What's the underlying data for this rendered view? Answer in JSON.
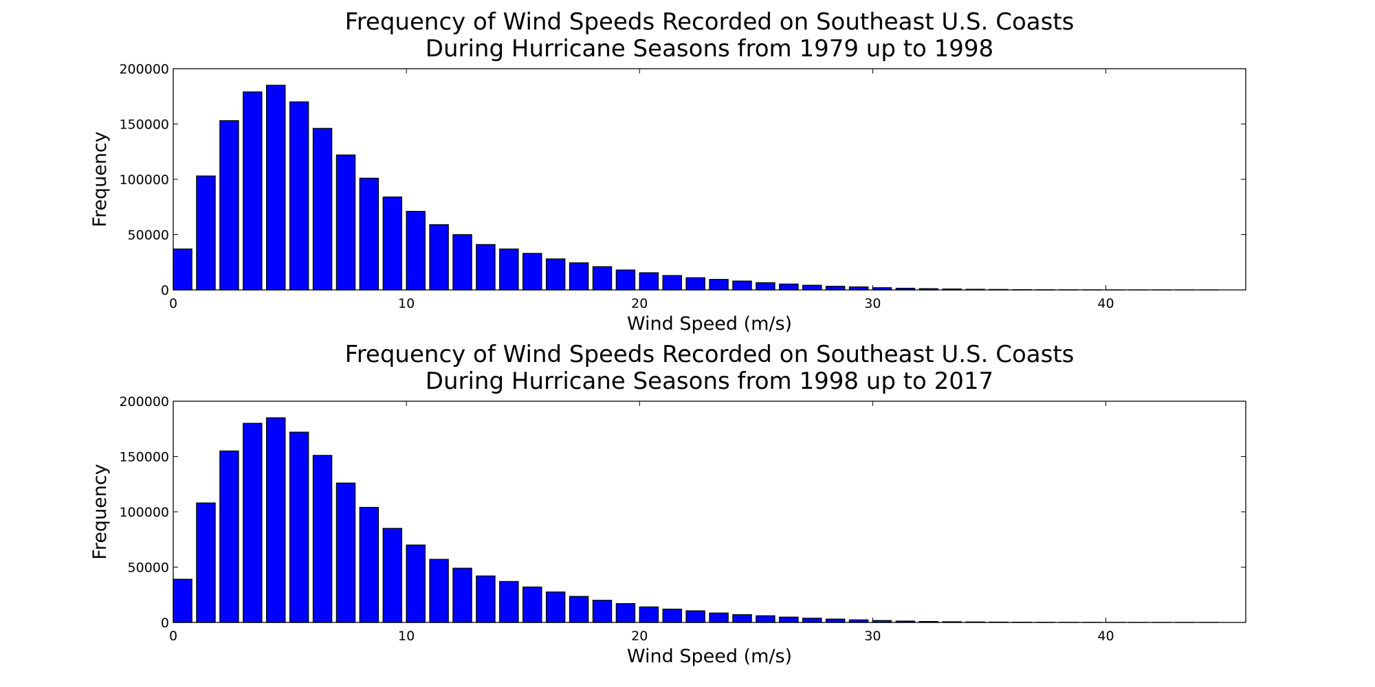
{
  "colors": {
    "bar": "#0000ff",
    "edge": "#000000",
    "background": "#ffffff"
  },
  "chart_data": [
    {
      "type": "bar",
      "title_lines": [
        "Frequency of Wind Speeds Recorded on Southeast U.S. Coasts",
        "During Hurricane Seasons from 1979 up to 1998"
      ],
      "xlabel": "Wind Speed (m/s)",
      "ylabel": "Frequency",
      "xlim": [
        0,
        46
      ],
      "ylim": [
        0,
        200000
      ],
      "xticks": [
        0,
        10,
        20,
        30,
        40
      ],
      "yticks": [
        0,
        50000,
        100000,
        150000,
        200000
      ],
      "grid": false,
      "bar_width": 0.8,
      "x": [
        0,
        1,
        2,
        3,
        4,
        5,
        6,
        7,
        8,
        9,
        10,
        11,
        12,
        13,
        14,
        15,
        16,
        17,
        18,
        19,
        20,
        21,
        22,
        23,
        24,
        25,
        26,
        27,
        28,
        29,
        30,
        31,
        32,
        33,
        34,
        35,
        36,
        37,
        38,
        39,
        40,
        41,
        42,
        43,
        44
      ],
      "values": [
        37000,
        103000,
        153000,
        179000,
        185000,
        170000,
        146000,
        122000,
        101000,
        84000,
        71000,
        59000,
        50000,
        41000,
        37000,
        33000,
        28000,
        24500,
        21000,
        18000,
        15500,
        13000,
        11000,
        9500,
        8000,
        6500,
        5300,
        4200,
        3300,
        2700,
        2000,
        1500,
        1100,
        800,
        550,
        400,
        250,
        170,
        110,
        80,
        50,
        30,
        20,
        12,
        8
      ]
    },
    {
      "type": "bar",
      "title_lines": [
        "Frequency of Wind Speeds Recorded on Southeast U.S. Coasts",
        "During Hurricane Seasons from 1998 up to 2017"
      ],
      "xlabel": "Wind Speed (m/s)",
      "ylabel": "Frequency",
      "xlim": [
        0,
        46
      ],
      "ylim": [
        0,
        200000
      ],
      "xticks": [
        0,
        10,
        20,
        30,
        40
      ],
      "yticks": [
        0,
        50000,
        100000,
        150000,
        200000
      ],
      "grid": false,
      "bar_width": 0.8,
      "x": [
        0,
        1,
        2,
        3,
        4,
        5,
        6,
        7,
        8,
        9,
        10,
        11,
        12,
        13,
        14,
        15,
        16,
        17,
        18,
        19,
        20,
        21,
        22,
        23,
        24,
        25,
        26,
        27,
        28,
        29,
        30,
        31,
        32,
        33,
        34,
        35,
        36,
        37,
        38,
        39,
        40,
        41,
        42,
        43,
        44
      ],
      "values": [
        39000,
        108000,
        155000,
        180000,
        185000,
        172000,
        151000,
        126000,
        104000,
        85000,
        70000,
        57000,
        49000,
        42000,
        37000,
        32000,
        27500,
        23500,
        20000,
        17000,
        14000,
        12000,
        10500,
        8500,
        7000,
        6000,
        4800,
        3800,
        3000,
        2300,
        1700,
        1200,
        850,
        600,
        400,
        280,
        180,
        120,
        80,
        50,
        30,
        20,
        12,
        8,
        5
      ]
    }
  ]
}
